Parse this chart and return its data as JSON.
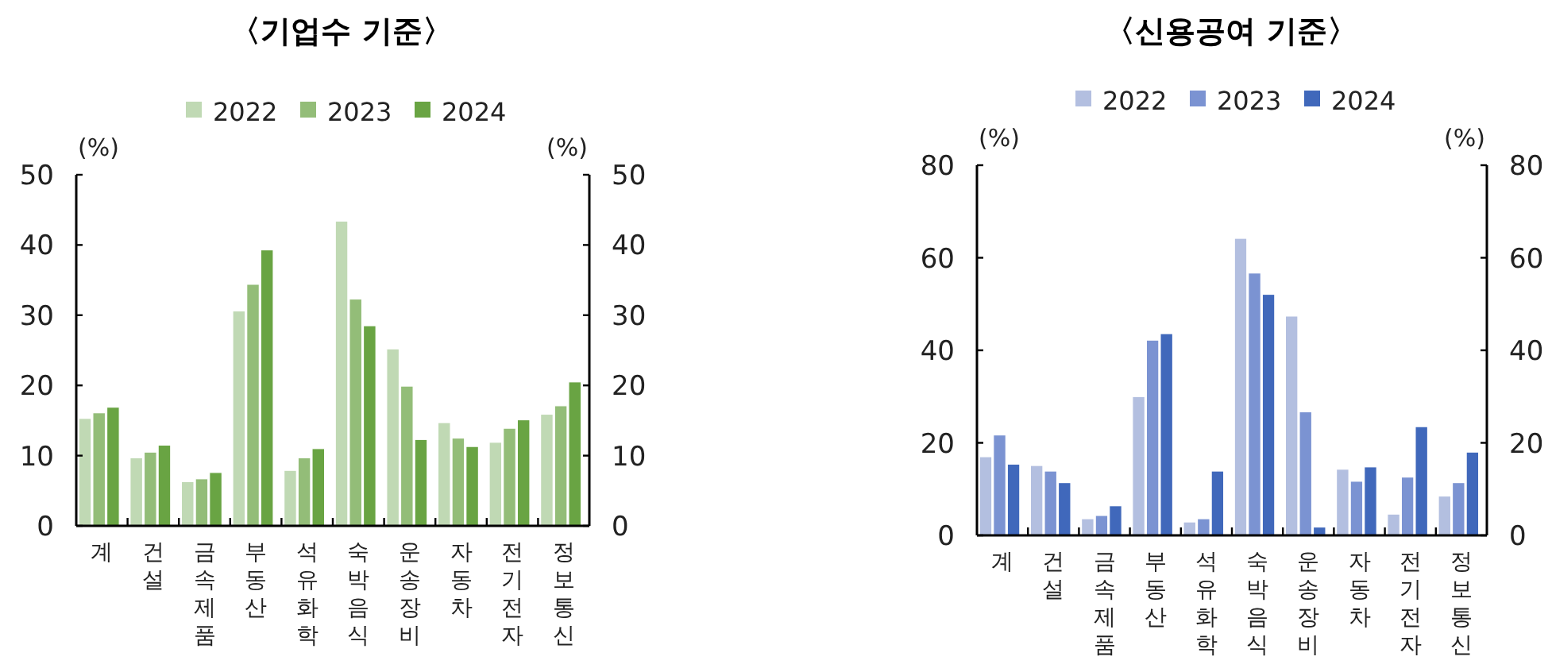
{
  "chart_data": [
    {
      "type": "bar",
      "title": "〈기업수 기준〉",
      "ylabel": "(%)",
      "y2label": "(%)",
      "legend": "top",
      "categories": [
        "계",
        "건설",
        "금속제품",
        "부동산",
        "석유화학",
        "숙박음식",
        "운송장비",
        "자동차",
        "전기전자",
        "정보통신"
      ],
      "series": [
        {
          "name": "2022",
          "color": "#c0d9b4",
          "values": [
            15.3,
            9.7,
            6.3,
            30.6,
            7.9,
            43.4,
            25.2,
            14.7,
            11.9,
            15.9
          ]
        },
        {
          "name": "2023",
          "color": "#93bd78",
          "values": [
            16.1,
            10.5,
            6.7,
            34.4,
            9.7,
            32.3,
            19.9,
            12.5,
            13.9,
            17.1
          ]
        },
        {
          "name": "2024",
          "color": "#69a443",
          "values": [
            16.9,
            11.5,
            7.6,
            39.3,
            11.0,
            28.5,
            12.3,
            11.3,
            15.1,
            20.5
          ]
        }
      ],
      "ylim": [
        0,
        50
      ],
      "yticks": [
        0,
        10,
        20,
        30,
        40,
        50
      ],
      "y2lim": [
        0,
        50
      ],
      "y2ticks": [
        0,
        10,
        20,
        30,
        40,
        50
      ]
    },
    {
      "type": "bar",
      "title": "〈신용공여 기준〉",
      "ylabel": "(%)",
      "y2label": "(%)",
      "legend": "top",
      "categories": [
        "계",
        "건설",
        "금속제품",
        "부동산",
        "석유화학",
        "숙박음식",
        "운송장비",
        "자동차",
        "전기전자",
        "정보통신"
      ],
      "series": [
        {
          "name": "2022",
          "color": "#b3bfe0",
          "values": [
            17.0,
            15.1,
            3.6,
            30.0,
            2.9,
            64.2,
            47.4,
            14.3,
            4.6,
            8.5
          ]
        },
        {
          "name": "2023",
          "color": "#7b93d2",
          "values": [
            21.7,
            13.9,
            4.3,
            42.2,
            3.6,
            56.7,
            26.7,
            11.7,
            12.6,
            11.4
          ]
        },
        {
          "name": "2024",
          "color": "#4068bb",
          "values": [
            15.4,
            11.4,
            6.4,
            43.6,
            13.9,
            52.1,
            1.8,
            14.8,
            23.5,
            18.0
          ]
        }
      ],
      "ylim": [
        0,
        80
      ],
      "yticks": [
        0,
        20,
        40,
        60,
        80
      ],
      "y2lim": [
        0,
        80
      ],
      "y2ticks": [
        0,
        20,
        40,
        60,
        80
      ]
    }
  ]
}
